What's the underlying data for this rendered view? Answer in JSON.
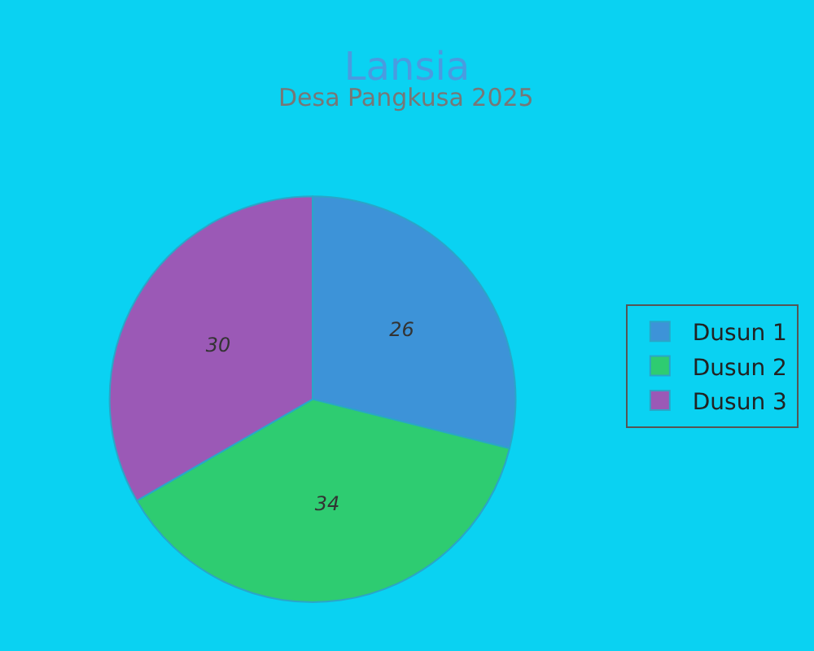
{
  "chart_data": {
    "type": "pie",
    "title": "Lansia",
    "subtitle": "Desa Pangkusa 2025",
    "categories": [
      "Dusun 1",
      "Dusun 2",
      "Dusun 3"
    ],
    "values": [
      26,
      34,
      30
    ],
    "colors": [
      "#3d93d8",
      "#2ecc71",
      "#9b59b6"
    ],
    "data_labels": true,
    "legend": "right"
  }
}
